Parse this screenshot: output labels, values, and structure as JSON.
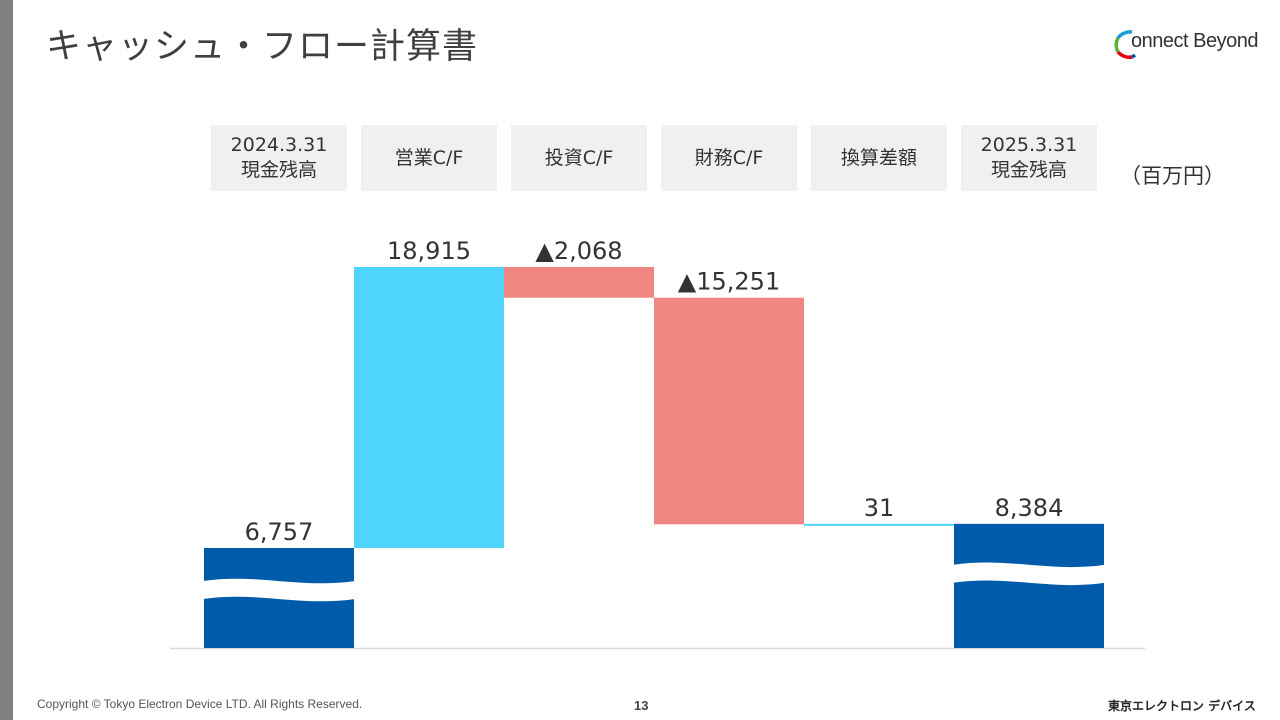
{
  "slide": {
    "title": "キャッシュ・フロー計算書",
    "unit": "（百万円）",
    "page_number": "13",
    "copyright": "Copyright © Tokyo Electron Device LTD. All Rights Reserved.",
    "brand_footer": "東京エレクトロン デバイス"
  },
  "logo": {
    "text": "onnect Beyond",
    "ring_colors": [
      "#1a9bd7",
      "#5cb531",
      "#e60012",
      "#0057a8"
    ]
  },
  "chart_data": {
    "type": "waterfall",
    "categories": [
      "2024.3.31\n現金残高",
      "営業C/F",
      "投資C/F",
      "財務C/F",
      "換算差額",
      "2025.3.31\n現金残高"
    ],
    "values": [
      6757,
      18915,
      -2068,
      -15251,
      31,
      8384
    ],
    "kinds": [
      "total",
      "increase",
      "decrease",
      "decrease",
      "increase",
      "total"
    ],
    "labels": [
      "6,757",
      "18,915",
      "▲2,068",
      "▲15,251",
      "31",
      "8,384"
    ],
    "axis_break": true,
    "colors": {
      "total": "#005bab",
      "increase": "#4fd5fd",
      "decrease": "#ef8681",
      "baseline": "#d9d9d9"
    }
  }
}
